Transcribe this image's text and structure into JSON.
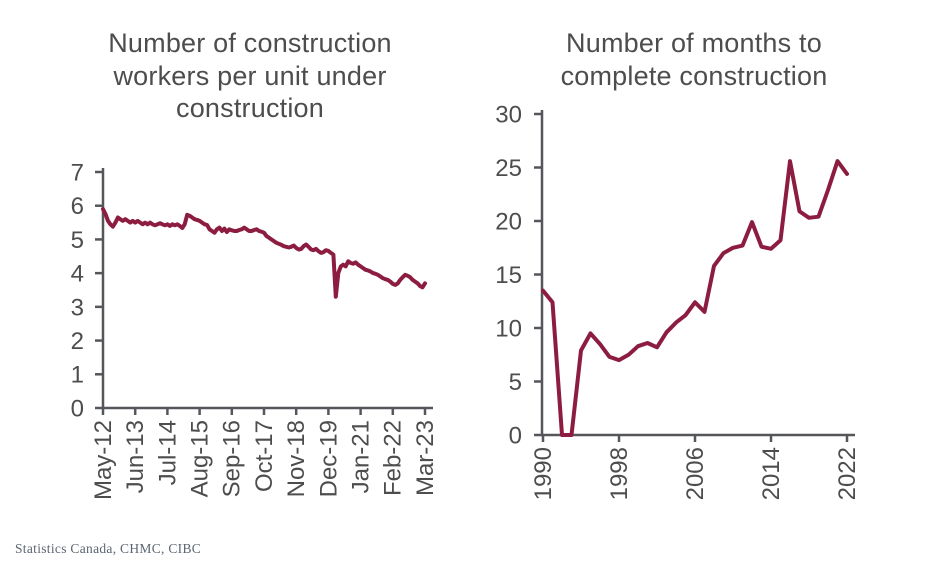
{
  "style": {
    "line_color": "#8C1D40",
    "axis_color": "#55565A",
    "title_color": "#4D4D4D",
    "tick_label_color": "#4D4D4D",
    "source_color": "#5C6672",
    "background": "#FFFFFF"
  },
  "source_note": "Statistics Canada, CHMC, CIBC",
  "chart_data": [
    {
      "id": "workers-per-unit",
      "type": "line",
      "title": "Number of construction workers per unit under construction",
      "title_lines": [
        "Number of construction",
        "workers per unit under",
        "construction"
      ],
      "xlabel": "",
      "ylabel": "",
      "x_frequency": "monthly",
      "x_start": "May-12",
      "x_end": "Mar-23",
      "x_tick_labels": [
        "May-12",
        "Jun-13",
        "Jul-14",
        "Aug-15",
        "Sep-16",
        "Oct-17",
        "Nov-18",
        "Dec-19",
        "Jan-21",
        "Feb-22",
        "Mar-23"
      ],
      "y_ticks": [
        0,
        1,
        2,
        3,
        4,
        5,
        6,
        7
      ],
      "ylim": [
        0,
        7
      ],
      "grid": false,
      "legend": null,
      "values": [
        5.9,
        5.75,
        5.55,
        5.45,
        5.38,
        5.5,
        5.65,
        5.6,
        5.55,
        5.6,
        5.55,
        5.5,
        5.55,
        5.5,
        5.55,
        5.5,
        5.45,
        5.5,
        5.45,
        5.5,
        5.45,
        5.42,
        5.45,
        5.48,
        5.45,
        5.42,
        5.45,
        5.4,
        5.45,
        5.42,
        5.45,
        5.4,
        5.34,
        5.45,
        5.73,
        5.7,
        5.65,
        5.6,
        5.58,
        5.55,
        5.5,
        5.45,
        5.43,
        5.3,
        5.25,
        5.2,
        5.3,
        5.35,
        5.25,
        5.32,
        5.22,
        5.3,
        5.27,
        5.25,
        5.25,
        5.28,
        5.3,
        5.35,
        5.3,
        5.25,
        5.25,
        5.28,
        5.3,
        5.25,
        5.23,
        5.2,
        5.1,
        5.05,
        5.0,
        4.95,
        4.9,
        4.87,
        4.84,
        4.8,
        4.78,
        4.76,
        4.78,
        4.82,
        4.75,
        4.7,
        4.72,
        4.8,
        4.85,
        4.78,
        4.7,
        4.68,
        4.72,
        4.65,
        4.6,
        4.62,
        4.68,
        4.66,
        4.6,
        4.55,
        3.3,
        4.0,
        4.2,
        4.25,
        4.2,
        4.35,
        4.3,
        4.28,
        4.32,
        4.25,
        4.2,
        4.15,
        4.1,
        4.08,
        4.05,
        4.0,
        3.98,
        3.95,
        3.9,
        3.85,
        3.82,
        3.8,
        3.75,
        3.68,
        3.65,
        3.7,
        3.8,
        3.88,
        3.95,
        3.92,
        3.88,
        3.8,
        3.75,
        3.7,
        3.62,
        3.58,
        3.7
      ]
    },
    {
      "id": "months-to-complete",
      "type": "line",
      "title": "Number of months to complete construction",
      "title_lines": [
        "Number of months to",
        "complete construction"
      ],
      "xlabel": "",
      "ylabel": "",
      "x_frequency": "annual",
      "x_start": "1990",
      "x_end": "2022",
      "x_tick_labels": [
        "1990",
        "1998",
        "2006",
        "2014",
        "2022"
      ],
      "y_ticks": [
        0,
        5,
        10,
        15,
        20,
        25,
        30
      ],
      "ylim": [
        0,
        30
      ],
      "grid": false,
      "legend": null,
      "values": [
        13.5,
        12.4,
        0,
        0,
        7.9,
        9.5,
        8.5,
        7.3,
        7.0,
        7.5,
        8.3,
        8.6,
        8.2,
        9.6,
        10.5,
        11.2,
        12.4,
        11.5,
        15.8,
        17.0,
        17.5,
        17.7,
        19.9,
        17.6,
        17.4,
        18.2,
        25.6,
        20.9,
        20.3,
        20.4,
        22.9,
        25.6,
        24.4
      ]
    }
  ]
}
